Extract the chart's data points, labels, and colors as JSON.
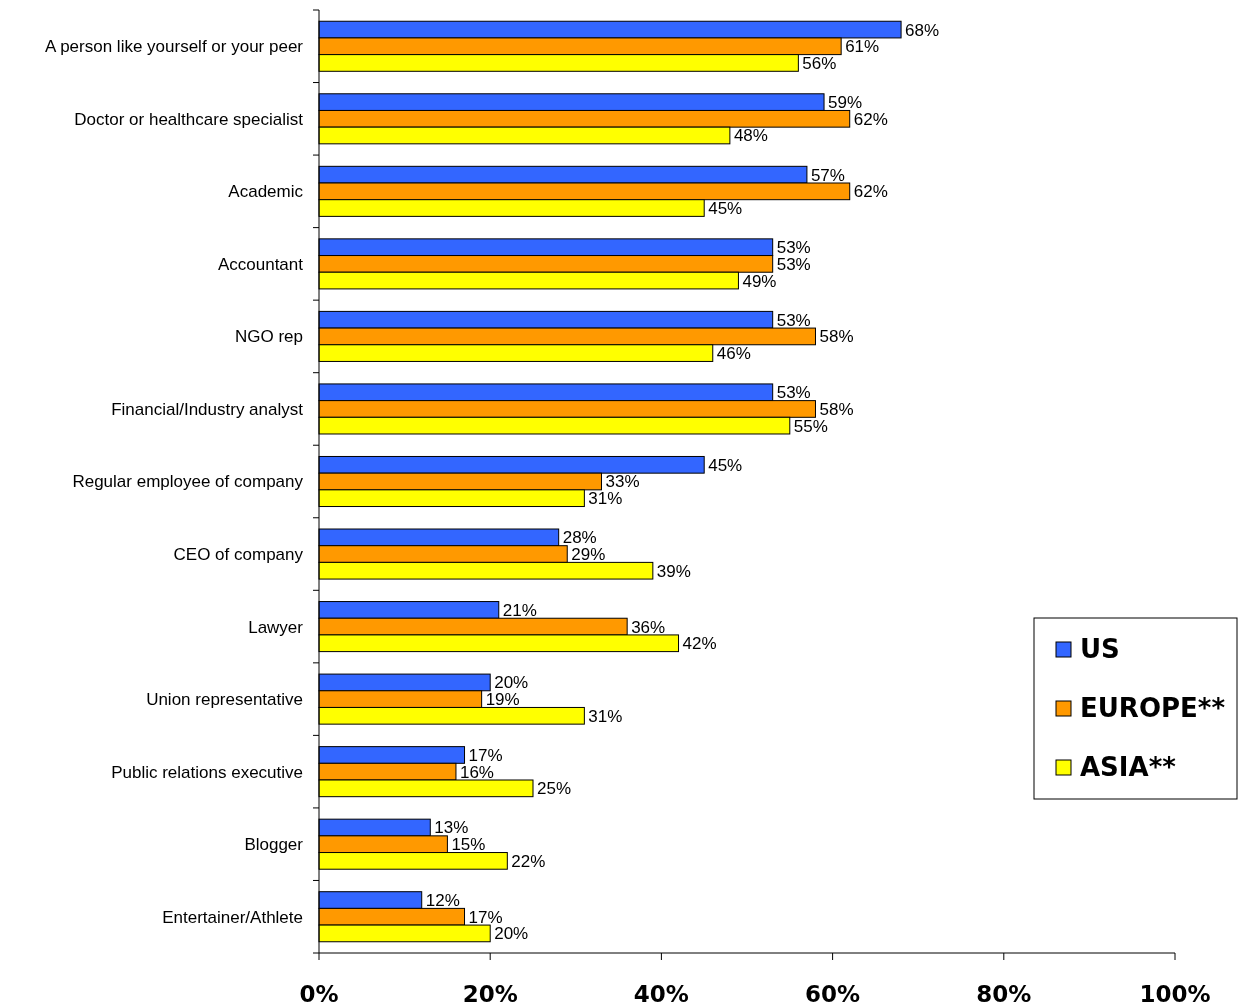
{
  "chart_data": {
    "type": "bar",
    "orientation": "horizontal",
    "categories": [
      "A person like yourself or your peer",
      "Doctor or healthcare specialist",
      "Academic",
      "Accountant",
      "NGO rep",
      "Financial/Industry analyst",
      "Regular employee of company",
      "CEO of company",
      "Lawyer",
      "Union representative",
      "Public relations executive",
      "Blogger",
      "Entertainer/Athlete"
    ],
    "series": [
      {
        "name": "US",
        "color": "#3366ff",
        "values": [
          68,
          59,
          57,
          53,
          53,
          53,
          45,
          28,
          21,
          20,
          17,
          13,
          12
        ],
        "value_labels": [
          "68%",
          "59%",
          "57%",
          "53%",
          "53%",
          "53%",
          "45%",
          "28%",
          "21%",
          "20%",
          "17%",
          "13%",
          "12%"
        ]
      },
      {
        "name": "EUROPE**",
        "color": "#ff9900",
        "values": [
          61,
          62,
          62,
          53,
          58,
          58,
          33,
          29,
          36,
          19,
          16,
          15,
          17
        ],
        "value_labels": [
          "61%",
          "62%",
          "62%",
          "53%",
          "58%",
          "58%",
          "33%",
          "29%",
          "36%",
          "19%",
          "16%",
          "15%",
          "17%"
        ]
      },
      {
        "name": "ASIA**",
        "color": "#ffff00",
        "values": [
          56,
          48,
          45,
          49,
          46,
          55,
          31,
          39,
          42,
          31,
          25,
          22,
          20
        ],
        "value_labels": [
          "56%",
          "48%",
          "45%",
          "49%",
          "46%",
          "55%",
          "31%",
          "39%",
          "42%",
          "31%",
          "25%",
          "22%",
          "20%"
        ]
      }
    ],
    "xlim": [
      0,
      100
    ],
    "xticks": [
      {
        "value": 0,
        "label": "0%"
      },
      {
        "value": 20,
        "label": "20%"
      },
      {
        "value": 40,
        "label": "40%"
      },
      {
        "value": 60,
        "label": "60%"
      },
      {
        "value": 80,
        "label": "80%"
      },
      {
        "value": 100,
        "label": "100%"
      }
    ],
    "legend": "right"
  }
}
